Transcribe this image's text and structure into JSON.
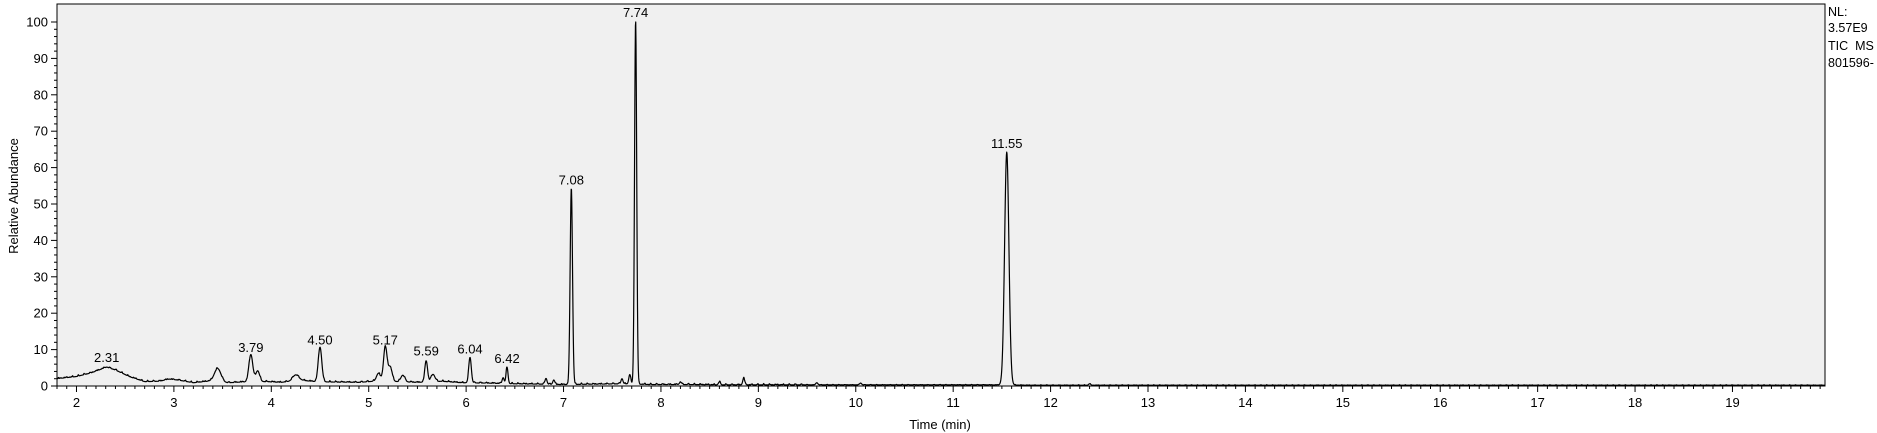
{
  "info": {
    "nl_label": "NL:",
    "nl_value": "3.57E9",
    "trace_label": "TIC  MS",
    "file_id": "801596-"
  },
  "chart_data": {
    "type": "line",
    "title": "",
    "xlabel": "Time (min)",
    "ylabel": "Relative Abundance",
    "xlim": [
      1.8,
      19.95
    ],
    "ylim": [
      0,
      100
    ],
    "x_ticks": [
      2,
      3,
      4,
      5,
      6,
      7,
      8,
      9,
      10,
      11,
      12,
      13,
      14,
      15,
      16,
      17,
      18,
      19
    ],
    "y_ticks": [
      0,
      10,
      20,
      30,
      40,
      50,
      60,
      70,
      80,
      90,
      100
    ],
    "grid": false,
    "legend": "none",
    "colors": {
      "plot_background": "#f0f0f0",
      "trace": "#000000"
    },
    "baseline": [
      [
        1.8,
        2.0
      ],
      [
        2.0,
        2.6
      ],
      [
        2.15,
        3.6
      ],
      [
        2.25,
        4.6
      ],
      [
        2.31,
        5.2
      ],
      [
        2.4,
        4.4
      ],
      [
        2.55,
        2.5
      ],
      [
        2.7,
        1.2
      ],
      [
        2.85,
        1.3
      ],
      [
        2.95,
        1.9
      ],
      [
        3.05,
        1.6
      ],
      [
        3.2,
        0.9
      ],
      [
        3.35,
        1.3
      ],
      [
        3.5,
        0.8
      ],
      [
        3.7,
        1.1
      ],
      [
        3.95,
        1.2
      ],
      [
        4.1,
        1.0
      ],
      [
        4.3,
        1.6
      ],
      [
        4.45,
        1.2
      ],
      [
        4.6,
        1.1
      ],
      [
        4.9,
        1.0
      ],
      [
        5.05,
        1.3
      ],
      [
        5.3,
        1.2
      ],
      [
        5.5,
        1.0
      ],
      [
        5.75,
        1.3
      ],
      [
        5.95,
        0.9
      ],
      [
        6.2,
        0.8
      ],
      [
        6.5,
        0.6
      ],
      [
        6.8,
        0.5
      ],
      [
        7.0,
        0.4
      ],
      [
        7.3,
        0.5
      ],
      [
        7.6,
        0.6
      ],
      [
        7.9,
        0.4
      ],
      [
        8.3,
        0.4
      ],
      [
        8.6,
        0.3
      ],
      [
        9.0,
        0.3
      ],
      [
        9.5,
        0.3
      ],
      [
        10.0,
        0.3
      ],
      [
        10.5,
        0.3
      ],
      [
        11.0,
        0.3
      ],
      [
        11.4,
        0.3
      ],
      [
        11.8,
        0.2
      ],
      [
        12.5,
        0.2
      ],
      [
        14.0,
        0.2
      ],
      [
        16.0,
        0.2
      ],
      [
        18.0,
        0.2
      ],
      [
        19.95,
        0.2
      ]
    ],
    "peaks": [
      {
        "rt": 3.45,
        "height": 3.8,
        "width": 0.035
      },
      {
        "rt": 3.79,
        "height": 7.5,
        "width": 0.02
      },
      {
        "rt": 3.86,
        "height": 3.0,
        "width": 0.02
      },
      {
        "rt": 4.25,
        "height": 1.6,
        "width": 0.03
      },
      {
        "rt": 4.5,
        "height": 9.5,
        "width": 0.018
      },
      {
        "rt": 5.1,
        "height": 2.2,
        "width": 0.02
      },
      {
        "rt": 5.17,
        "height": 9.5,
        "width": 0.018
      },
      {
        "rt": 5.22,
        "height": 4.0,
        "width": 0.02
      },
      {
        "rt": 5.35,
        "height": 1.8,
        "width": 0.02
      },
      {
        "rt": 5.59,
        "height": 5.8,
        "width": 0.014
      },
      {
        "rt": 5.66,
        "height": 2.0,
        "width": 0.02
      },
      {
        "rt": 6.04,
        "height": 7.0,
        "width": 0.013
      },
      {
        "rt": 6.38,
        "height": 1.6,
        "width": 0.01
      },
      {
        "rt": 6.42,
        "height": 4.5,
        "width": 0.01
      },
      {
        "rt": 6.82,
        "height": 1.6,
        "width": 0.01
      },
      {
        "rt": 6.9,
        "height": 1.2,
        "width": 0.01
      },
      {
        "rt": 7.08,
        "height": 54,
        "width": 0.012
      },
      {
        "rt": 7.6,
        "height": 1.4,
        "width": 0.01
      },
      {
        "rt": 7.68,
        "height": 2.6,
        "width": 0.01
      },
      {
        "rt": 7.74,
        "height": 100,
        "width": 0.011
      },
      {
        "rt": 8.2,
        "height": 0.7,
        "width": 0.01
      },
      {
        "rt": 8.6,
        "height": 0.8,
        "width": 0.01
      },
      {
        "rt": 8.85,
        "height": 1.9,
        "width": 0.01
      },
      {
        "rt": 9.6,
        "height": 0.6,
        "width": 0.01
      },
      {
        "rt": 10.05,
        "height": 0.5,
        "width": 0.01
      },
      {
        "rt": 11.55,
        "height": 64,
        "width": 0.022
      },
      {
        "rt": 12.4,
        "height": 0.4,
        "width": 0.01
      }
    ],
    "annotations": [
      {
        "label": "2.31",
        "x": 2.31,
        "y": 5.2
      },
      {
        "label": "3.79",
        "x": 3.79,
        "y": 8.0
      },
      {
        "label": "4.50",
        "x": 4.5,
        "y": 10.0
      },
      {
        "label": "5.17",
        "x": 5.17,
        "y": 10.0
      },
      {
        "label": "5.59",
        "x": 5.59,
        "y": 7.0
      },
      {
        "label": "6.04",
        "x": 6.04,
        "y": 7.6
      },
      {
        "label": "6.42",
        "x": 6.42,
        "y": 5.0
      },
      {
        "label": "7.08",
        "x": 7.08,
        "y": 54
      },
      {
        "label": "7.74",
        "x": 7.74,
        "y": 100
      },
      {
        "label": "11.55",
        "x": 11.55,
        "y": 64
      }
    ]
  }
}
